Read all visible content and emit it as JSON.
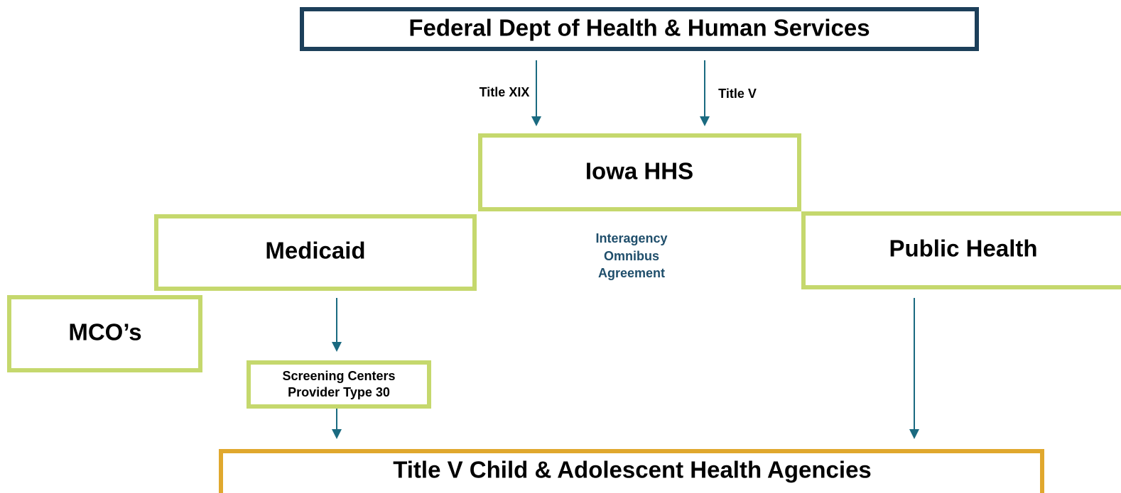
{
  "nodes": [
    {
      "label": "Federal Dept of Health & Human Services"
    },
    {
      "label": "Iowa HHS"
    },
    {
      "label": "Medicaid"
    },
    {
      "label": "Public Health"
    },
    {
      "label": "MCO’s"
    },
    {
      "lines": [
        "Screening Centers",
        "Provider Type 30"
      ]
    },
    {
      "label": "Title V Child & Adolescent Health Agencies"
    }
  ],
  "edges": [
    {
      "label": "Title XIX"
    },
    {
      "label": "Title V"
    }
  ],
  "note": {
    "lines": [
      "Interagency",
      "Omnibus",
      "Agreement"
    ]
  }
}
